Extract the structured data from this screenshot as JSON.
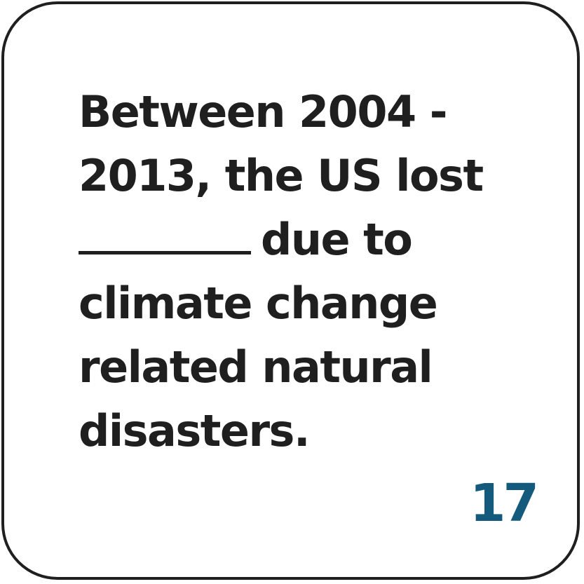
{
  "card": {
    "question_lines": [
      "Between 2004 -",
      "2013, the US lost",
      "due to",
      "climate change",
      "related natural",
      "disasters."
    ],
    "number": "17"
  },
  "colors": {
    "text": "#1f1f1f",
    "border": "#1f1f1f",
    "number": "#145a7c",
    "background": "#ffffff"
  }
}
